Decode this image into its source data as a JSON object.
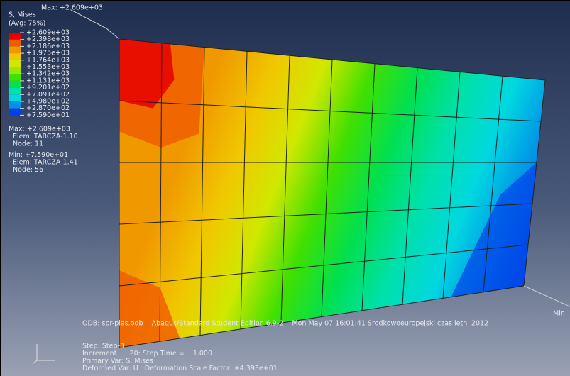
{
  "viewport": {
    "max_annotation": "Max: +2.609e+03",
    "min_annotation": "Min:",
    "legend": {
      "title": "S, Mises",
      "subtitle": "(Avg: 75%)",
      "labels": [
        "+2.609e+03",
        "+2.398e+03",
        "+2.186e+03",
        "+1.975e+03",
        "+1.764e+03",
        "+1.553e+03",
        "+1.342e+03",
        "+1.131e+03",
        "+9.201e+02",
        "+7.091e+02",
        "+4.980e+02",
        "+2.870e+02",
        "+7.590e+01"
      ],
      "colors": [
        "#e80000",
        "#f05a00",
        "#f09800",
        "#f0c800",
        "#d0e800",
        "#98e800",
        "#40e000",
        "#00e050",
        "#00e0a8",
        "#00d8e0",
        "#0090e8",
        "#0040e8"
      ]
    },
    "extremes": [
      "Max: +2.609e+03",
      "  Elem: TARCZA-1.10",
      "  Node: 11",
      "Min: +7.590e+01",
      "  Elem: TARCZA-1.41",
      "  Node: 56"
    ],
    "odb_line": "ODB: spr-plas.odb    Abaqus/Standard Student Edition 6.9-2    Mon May 07 16:01:41 Srodkowoeuropejski czas letni 2012",
    "step_info": [
      "Step: Step-3",
      "Increment      20: Step Time =    1.000",
      "Primary Var: S, Mises",
      "Deformed Var: U   Deformation Scale Factor: +4.393e+01"
    ]
  }
}
